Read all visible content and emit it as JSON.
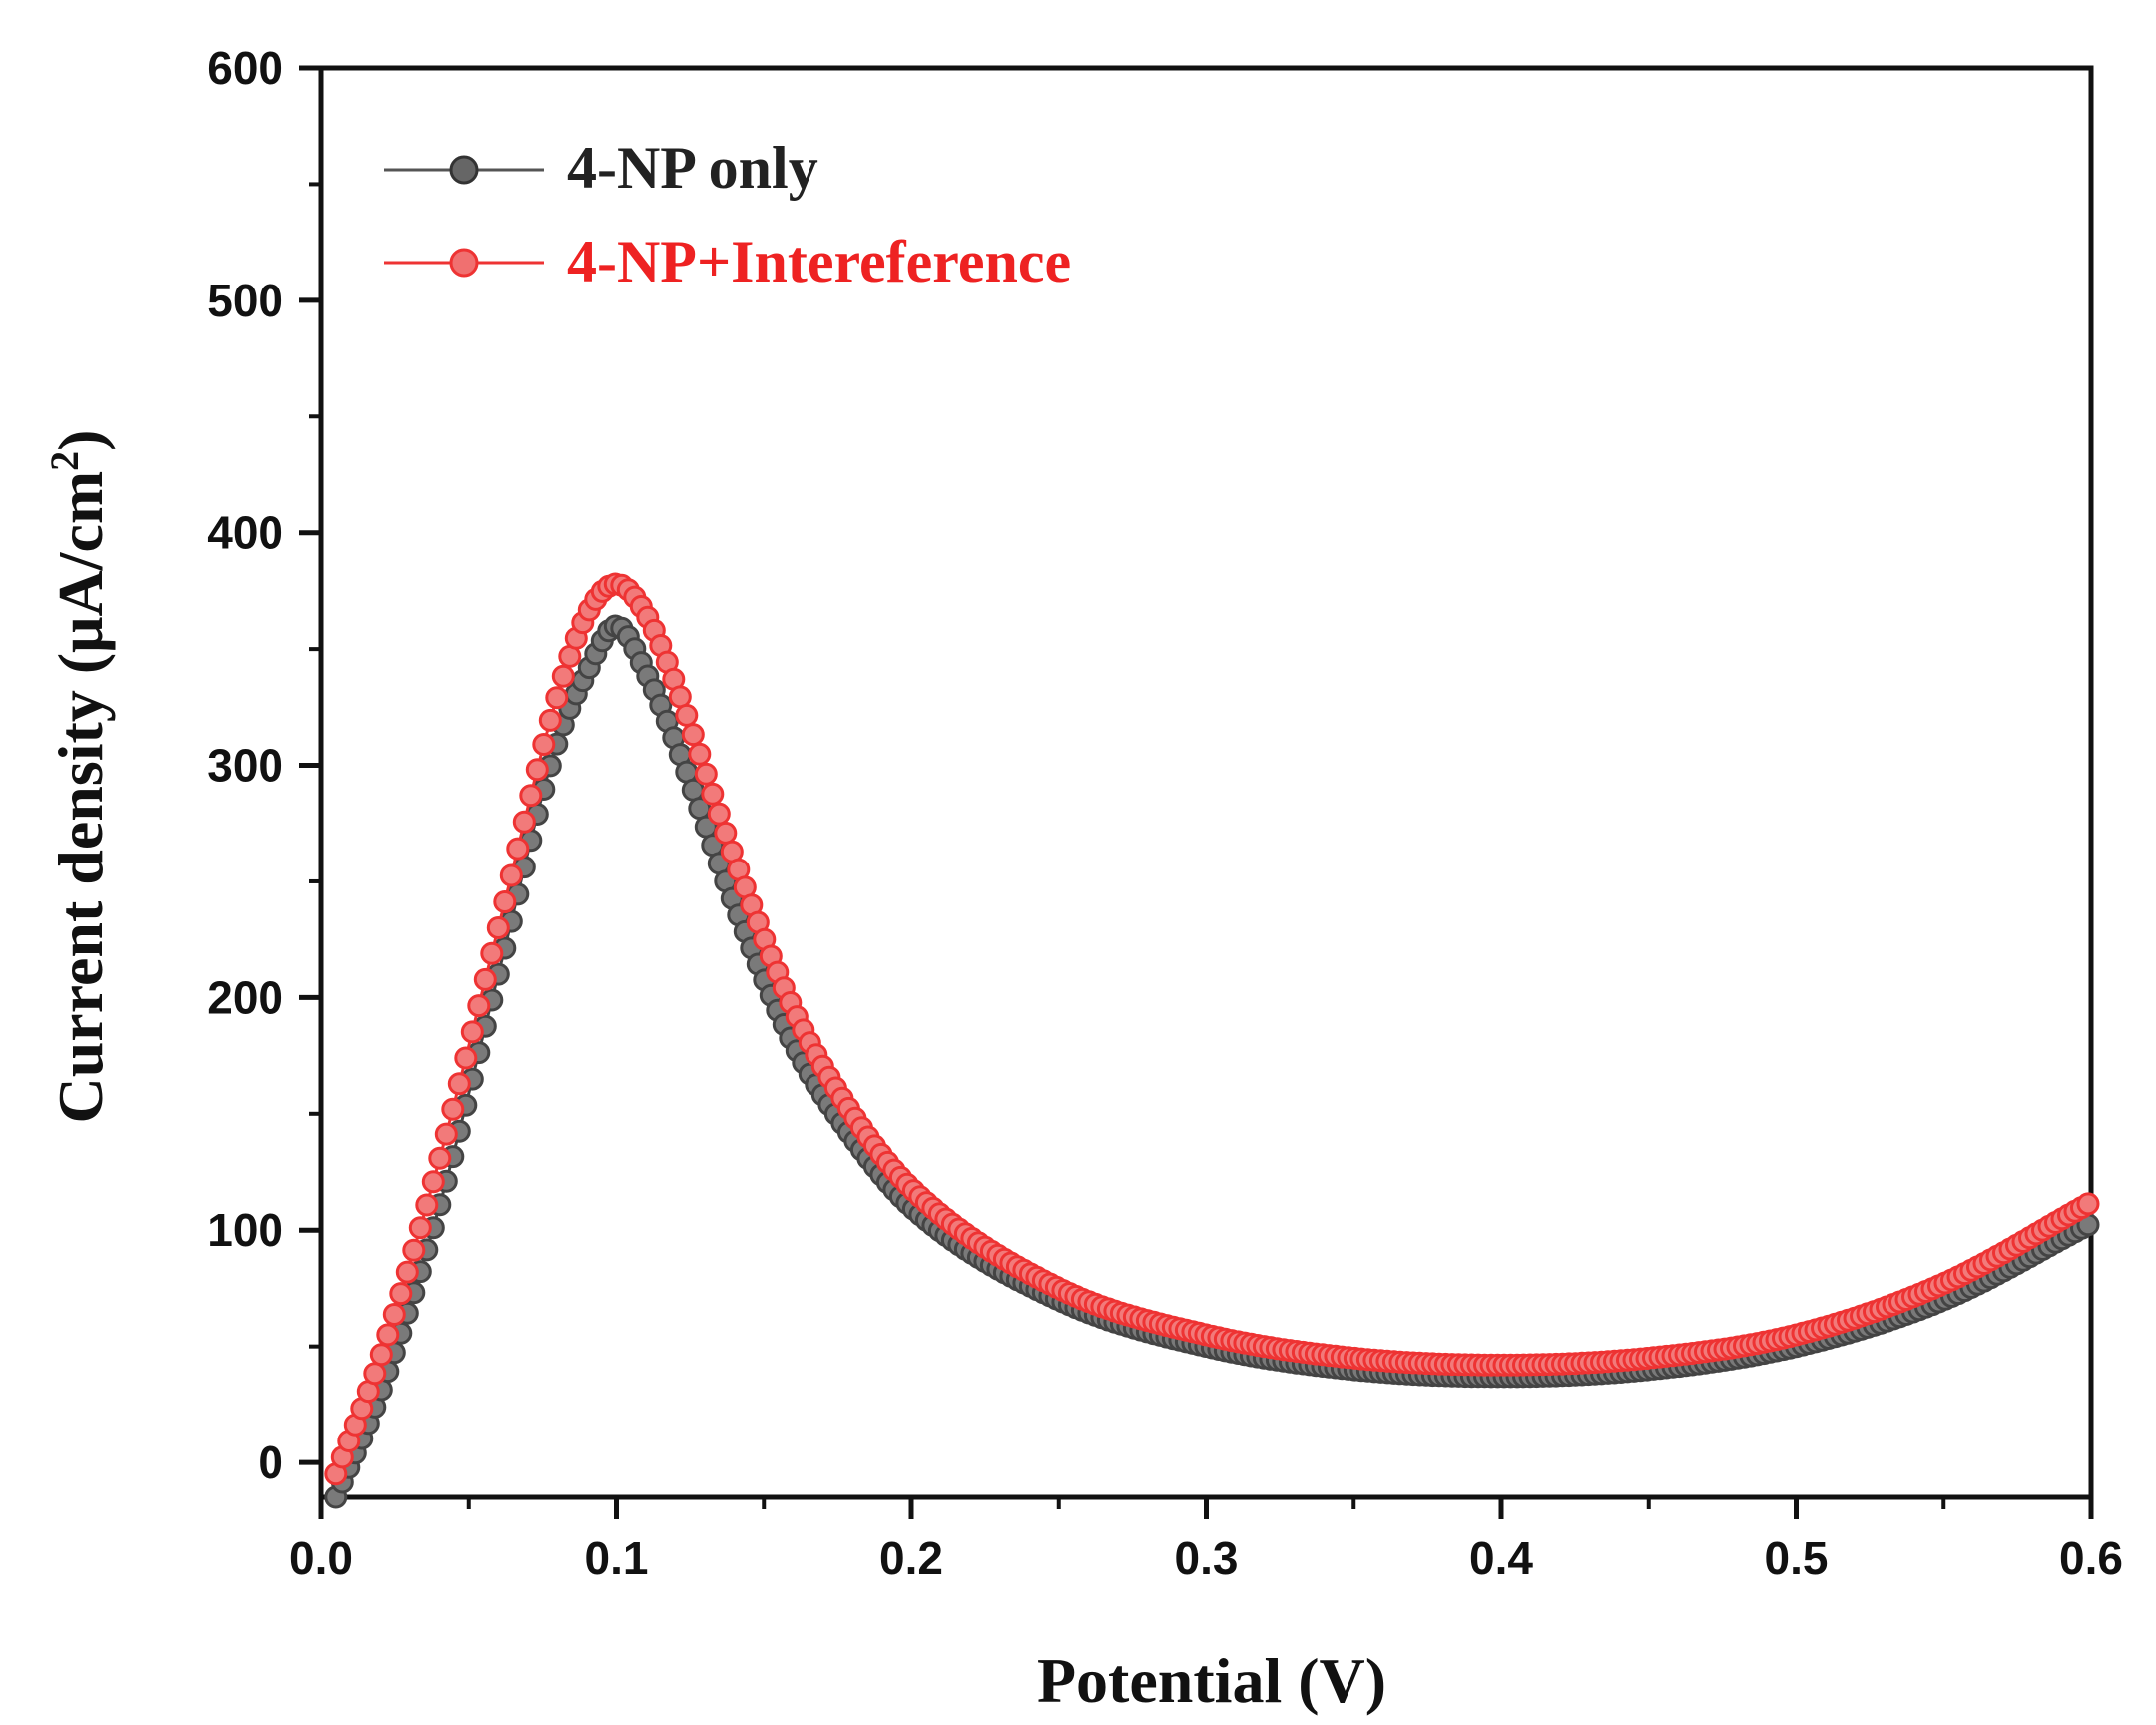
{
  "chart_data": {
    "type": "line",
    "title": "",
    "xlabel": "Potential (V)",
    "ylabel": "Current density (μA/cm",
    "ylabel_sup": "2",
    "ylabel_close": ")",
    "xlim": [
      0.0,
      0.6
    ],
    "ylim": [
      -15,
      600
    ],
    "x_ticks": [
      0.0,
      0.1,
      0.2,
      0.3,
      0.4,
      0.5,
      0.6
    ],
    "x_tick_labels": [
      "0.0",
      "0.1",
      "0.2",
      "0.3",
      "0.4",
      "0.5",
      "0.6"
    ],
    "y_ticks": [
      0,
      100,
      200,
      300,
      400,
      500,
      600
    ],
    "y_tick_labels": [
      "0",
      "100",
      "200",
      "300",
      "400",
      "500",
      "600"
    ],
    "grid": false,
    "legend_position": "top-left",
    "series": [
      {
        "name": "4-NP only",
        "color": "#555555",
        "x": [
          0.005,
          0.02,
          0.04,
          0.06,
          0.08,
          0.09,
          0.1,
          0.11,
          0.12,
          0.14,
          0.16,
          0.18,
          0.2,
          0.25,
          0.3,
          0.35,
          0.4,
          0.45,
          0.5,
          0.55,
          0.6
        ],
        "y": [
          -15,
          30,
          110,
          210,
          310,
          340,
          360,
          340,
          310,
          240,
          180,
          140,
          110,
          70,
          50,
          40,
          37,
          40,
          50,
          70,
          103
        ]
      },
      {
        "name": "4-NP+Intereference",
        "color": "#ee3333",
        "x": [
          0.005,
          0.02,
          0.04,
          0.06,
          0.08,
          0.09,
          0.1,
          0.11,
          0.12,
          0.14,
          0.16,
          0.18,
          0.2,
          0.25,
          0.3,
          0.35,
          0.4,
          0.45,
          0.5,
          0.55,
          0.6
        ],
        "y": [
          -5,
          45,
          130,
          230,
          330,
          365,
          378,
          365,
          335,
          260,
          195,
          150,
          118,
          75,
          55,
          45,
          42,
          45,
          55,
          77,
          112
        ]
      }
    ]
  }
}
